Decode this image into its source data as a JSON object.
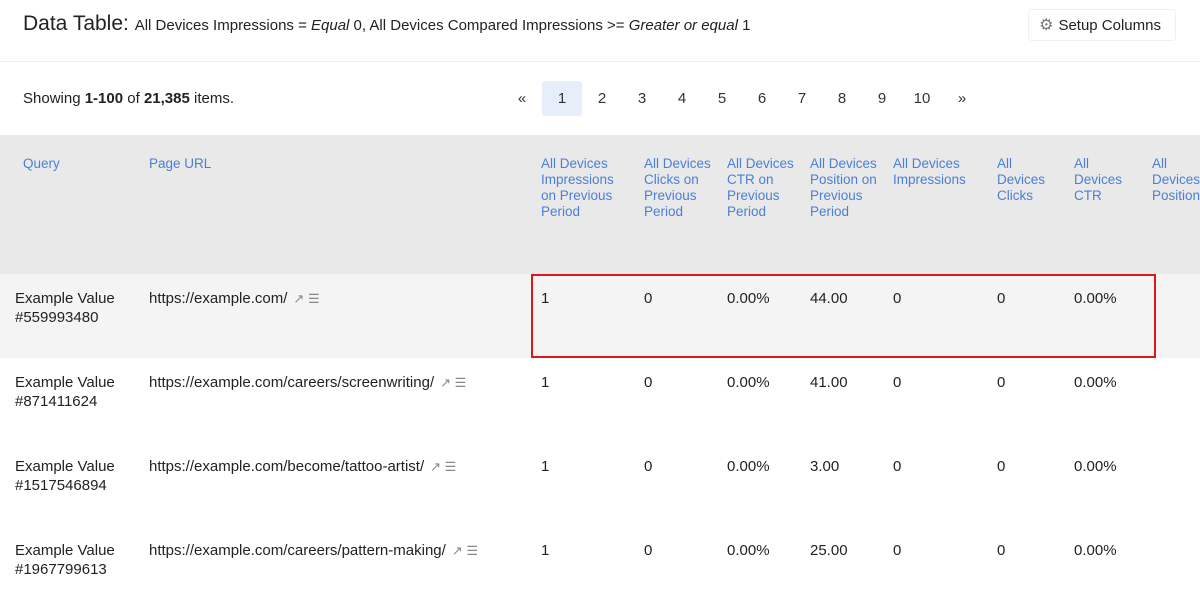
{
  "header": {
    "title": "Data Table:",
    "filter_parts": [
      "All Devices Impressions = ",
      "Equal",
      " 0, All Devices Compared Impressions >= ",
      "Greater or equal",
      " 1"
    ],
    "setup_label": "Setup Columns"
  },
  "summary": {
    "prefix": "Showing ",
    "range": "1-100",
    "mid": " of ",
    "total": "21,385",
    "suffix": " items."
  },
  "pagination": {
    "prev": "«",
    "pages": [
      "1",
      "2",
      "3",
      "4",
      "5",
      "6",
      "7",
      "8",
      "9",
      "10"
    ],
    "next": "»",
    "current": "1"
  },
  "columns": [
    "Query",
    "Page URL",
    "All Devices Impressions on Previous Period",
    "All Devices Clicks on Previous Period",
    "All Devices CTR on Previous Period",
    "All Devices Position on Previous Period",
    "All Devices Impressions",
    "All Devices Clicks",
    "All Devices CTR",
    "All Devices Position"
  ],
  "rows": [
    [
      "Example Value #559993480",
      "https://example.com/",
      "1",
      "0",
      "0.00%",
      "44.00",
      "0",
      "0",
      "0.00%",
      ""
    ],
    [
      "Example Value #871411624",
      "https://example.com/careers/screenwriting/",
      "1",
      "0",
      "0.00%",
      "41.00",
      "0",
      "0",
      "0.00%",
      ""
    ],
    [
      "Example Value #1517546894",
      "https://example.com/become/tattoo-artist/",
      "1",
      "0",
      "0.00%",
      "3.00",
      "0",
      "0",
      "0.00%",
      ""
    ],
    [
      "Example Value #1967799613",
      "https://example.com/careers/pattern-making/",
      "1",
      "0",
      "0.00%",
      "25.00",
      "0",
      "0",
      "0.00%",
      ""
    ]
  ],
  "highlight_color": "#e0161b"
}
